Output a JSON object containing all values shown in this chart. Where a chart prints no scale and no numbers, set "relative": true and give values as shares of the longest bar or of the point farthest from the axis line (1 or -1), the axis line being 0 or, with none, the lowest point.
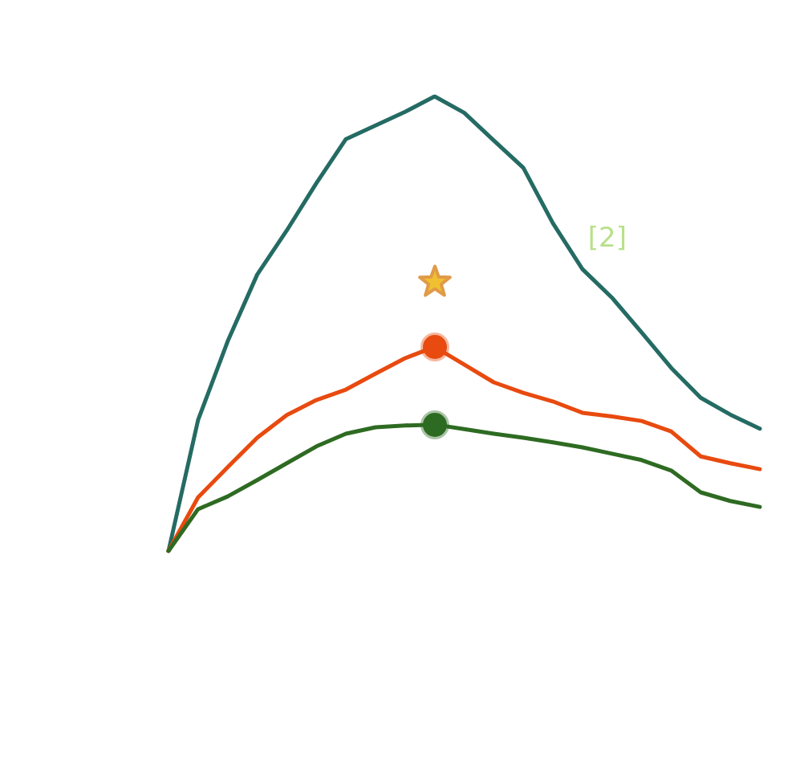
{
  "chart_data": {
    "type": "line",
    "relative": true,
    "line_style": "solid",
    "annotations": [
      "[2]"
    ],
    "categories": [
      null,
      null,
      null,
      null,
      null,
      null,
      null,
      null,
      null,
      null,
      null,
      null,
      null,
      null,
      null,
      null,
      null,
      null,
      null,
      null,
      null
    ],
    "series": [
      {
        "color": "#246b63",
        "values": [
          0,
          0.288,
          0.461,
          0.608,
          0.705,
          0.809,
          0.906,
          0.936,
          0.966,
          1,
          0.964,
          0.903,
          0.843,
          0.721,
          0.62,
          0.557,
          0.481,
          0.403,
          0.337,
          0.3,
          0.269
        ]
      },
      {
        "color": "#e84a0f",
        "values": [
          0,
          0.118,
          0.184,
          0.249,
          0.299,
          0.332,
          0.355,
          0.39,
          0.424,
          0.449,
          0.41,
          0.371,
          0.348,
          0.329,
          0.304,
          0.296,
          0.286,
          0.263,
          0.208,
          0.193,
          0.18
        ]
      },
      {
        "color": "#2e6b22",
        "values": [
          0,
          0.092,
          0.12,
          0.156,
          0.193,
          0.23,
          0.258,
          0.272,
          0.276,
          0.278,
          0.268,
          0.258,
          0.249,
          0.239,
          0.228,
          0.214,
          0.2,
          0.177,
          0.129,
          0.11,
          0.097
        ]
      }
    ]
  }
}
